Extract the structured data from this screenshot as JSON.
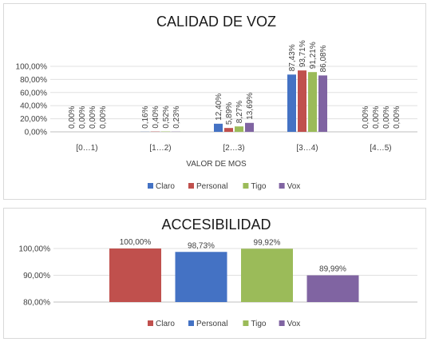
{
  "colors": {
    "Claro": "#4472c4",
    "Personal": "#c0504d",
    "Tigo": "#9bbb59",
    "Vox": "#8064a2"
  },
  "chart_data": [
    {
      "type": "bar",
      "title": "CALIDAD DE VOZ",
      "xlabel": "VALOR DE MOS",
      "ylabel": "",
      "ylim": [
        0,
        100
      ],
      "yticks": [
        "0,00%",
        "20,00%",
        "40,00%",
        "60,00%",
        "80,00%",
        "100,00%"
      ],
      "yticks_values": [
        0,
        20,
        40,
        60,
        80,
        100
      ],
      "categories": [
        "[0…1)",
        "[1…2)",
        "[2…3)",
        "[3…4)",
        "[4…5)"
      ],
      "series": [
        {
          "name": "Claro",
          "values": [
            0.0,
            0.16,
            12.4,
            87.43,
            0.0
          ],
          "labels": [
            "0,00%",
            "0,16%",
            "12,40%",
            "87,43%",
            "0,00%"
          ]
        },
        {
          "name": "Personal",
          "values": [
            0.0,
            0.4,
            5.89,
            93.71,
            0.0
          ],
          "labels": [
            "0,00%",
            "0,40%",
            "5,89%",
            "93,71%",
            "0,00%"
          ]
        },
        {
          "name": "Tigo",
          "values": [
            0.0,
            0.52,
            8.27,
            91.21,
            0.0
          ],
          "labels": [
            "0,00%",
            "0,52%",
            "8,27%",
            "91,21%",
            "0,00%"
          ]
        },
        {
          "name": "Vox",
          "values": [
            0.0,
            0.23,
            13.69,
            86.08,
            0.0
          ],
          "labels": [
            "0,00%",
            "0,23%",
            "13,69%",
            "86,08%",
            "0,00%"
          ]
        }
      ],
      "legend": "bottom",
      "grid": true
    },
    {
      "type": "bar",
      "title": "ACCESIBILIDAD",
      "xlabel": "",
      "ylabel": "",
      "ylim": [
        80,
        100
      ],
      "yticks": [
        "80,00%",
        "90,00%",
        "100,00%"
      ],
      "yticks_values": [
        80,
        90,
        100
      ],
      "categories": [
        "Claro",
        "Personal",
        "Tigo",
        "Vox"
      ],
      "values": [
        100.0,
        98.73,
        99.92,
        89.99
      ],
      "labels": [
        "100,00%",
        "98,73%",
        "99,92%",
        "89,99%"
      ],
      "bar_colors": [
        "#c0504d",
        "#4472c4",
        "#9bbb59",
        "#8064a2"
      ],
      "legend_items": [
        {
          "name": "Claro",
          "color": "#c0504d"
        },
        {
          "name": "Personal",
          "color": "#4472c4"
        },
        {
          "name": "Tigo",
          "color": "#9bbb59"
        },
        {
          "name": "Vox",
          "color": "#8064a2"
        }
      ],
      "legend": "bottom",
      "grid": true
    }
  ]
}
